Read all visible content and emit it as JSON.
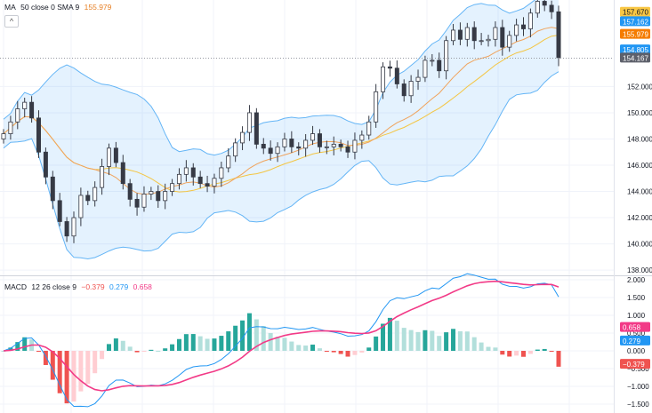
{
  "legend": {
    "ma": {
      "name": "MA",
      "params": "50 close 0 SMA 9",
      "value": "155.979",
      "color": "#e67e22"
    },
    "macd": {
      "name": "MACD",
      "params": "12 26 close 9",
      "hist": "−0.379",
      "macd": "0.279",
      "signal": "0.658",
      "hist_color": "#ef5350",
      "macd_color": "#2196f3",
      "signal_color": "#f23a87"
    }
  },
  "collapse_button": "^",
  "chart_data": [
    {
      "type": "candlestick",
      "title": "",
      "overlays": [
        "MA 50 (SMA 9)",
        "Bollinger Bands"
      ],
      "ylim": [
        137.6,
        158.6
      ],
      "yticks": [
        "138.000",
        "140.000",
        "142.000",
        "144.000",
        "146.000",
        "148.000",
        "150.000",
        "152.000"
      ],
      "price_labels": [
        {
          "value": "157.670",
          "y": 157.67,
          "bg": "#f9c744",
          "fg": "#131722"
        },
        {
          "value": "157.162",
          "y": 156.95,
          "bg": "#2196f3",
          "fg": "#ffffff"
        },
        {
          "value": "155.979",
          "y": 155.98,
          "bg": "#f57c00",
          "fg": "#ffffff"
        },
        {
          "value": "154.805",
          "y": 154.8,
          "bg": "#2196f3",
          "fg": "#ffffff"
        },
        {
          "value": "154.167",
          "y": 154.17,
          "bg": "#5d606b",
          "fg": "#ffffff"
        }
      ],
      "current_price": 154.167,
      "close": [
        148.4,
        149.3,
        150.3,
        150.8,
        149.6,
        147.0,
        145.1,
        143.3,
        141.7,
        140.6,
        142.0,
        143.7,
        143.3,
        144.3,
        145.9,
        147.3,
        146.2,
        144.6,
        143.4,
        142.8,
        143.8,
        144.0,
        143.3,
        144.0,
        144.6,
        145.3,
        145.8,
        145.1,
        144.6,
        144.4,
        145.0,
        145.8,
        146.7,
        147.7,
        148.5,
        150.0,
        147.6,
        147.3,
        146.9,
        147.4,
        148.0,
        147.4,
        147.3,
        147.9,
        148.4,
        147.4,
        147.4,
        147.6,
        147.4,
        147.0,
        147.9,
        148.3,
        149.3,
        151.6,
        153.5,
        153.4,
        152.2,
        151.3,
        152.4,
        152.7,
        154.0,
        154.0,
        153.2,
        155.5,
        156.3,
        155.6,
        156.5,
        155.5,
        155.5,
        155.6,
        156.5,
        155.0,
        155.9,
        156.7,
        156.4,
        157.6,
        158.5,
        158.2,
        157.7,
        154.2
      ]
    },
    {
      "type": "macd",
      "ylim": [
        -1.75,
        2.1
      ],
      "yticks": [
        "2.000",
        "1.500",
        "1.000",
        "0.500",
        "0.000",
        "−0.500",
        "−1.000",
        "−1.500"
      ],
      "value_labels": [
        {
          "value": "0.658",
          "y": 0.658,
          "bg": "#f23a87",
          "fg": "#ffffff"
        },
        {
          "value": "0.279",
          "y": 0.279,
          "bg": "#2196f3",
          "fg": "#ffffff"
        },
        {
          "value": "−0.379",
          "y": -0.379,
          "bg": "#ef5350",
          "fg": "#ffffff"
        }
      ]
    }
  ]
}
